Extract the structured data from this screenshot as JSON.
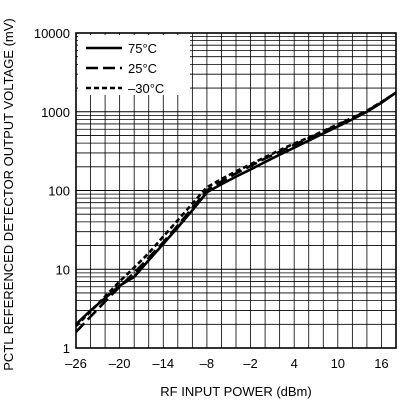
{
  "chart_data": {
    "type": "line",
    "xlabel": "RF INPUT POWER (dBm)",
    "ylabel": "PCTL REFERENCED DETECTOR OUTPUT VOLTAGE (mV)",
    "xlim": [
      -26,
      18
    ],
    "ylim": [
      1,
      10000
    ],
    "yscale": "log",
    "grid": true,
    "legend_position": "top-left",
    "x_ticks": [
      -26,
      -20,
      -14,
      -8,
      -2,
      4,
      10,
      16
    ],
    "x_tick_labels": [
      "–26",
      "–20",
      "–14",
      "–8",
      "–2",
      "4",
      "10",
      "16"
    ],
    "y_ticks": [
      1,
      10,
      100,
      1000,
      10000
    ],
    "y_tick_labels": [
      "1",
      "10",
      "100",
      "1000",
      "10000"
    ],
    "series": [
      {
        "name": "75°C",
        "dash": "solid",
        "x": [
          -26,
          -24,
          -22,
          -20,
          -18,
          -16,
          -14,
          -12,
          -10,
          -8,
          -6,
          -4,
          -2,
          0,
          2,
          4,
          6,
          8,
          10,
          12,
          14,
          16,
          18
        ],
        "y": [
          2.0,
          3.0,
          4.3,
          6.2,
          8.0,
          13.0,
          21.0,
          34.0,
          56.0,
          95.0,
          120.0,
          150.0,
          185.0,
          230.0,
          285.0,
          350.0,
          430.0,
          530.0,
          650.0,
          800.0,
          1000.0,
          1300.0,
          1750.0
        ]
      },
      {
        "name": "25°C",
        "dash": "long-dash",
        "x": [
          -26,
          -24,
          -22,
          -20,
          -18,
          -16,
          -14,
          -12,
          -10,
          -8,
          -6,
          -4,
          -2,
          0,
          2,
          4,
          6,
          8,
          10,
          12,
          14,
          16,
          18
        ],
        "y": [
          1.6,
          2.5,
          3.9,
          6.0,
          9.0,
          14.0,
          22.0,
          36.0,
          60.0,
          100.0,
          130.0,
          165.0,
          205.0,
          255.0,
          310.0,
          380.0,
          460.0,
          560.0,
          680.0,
          830.0,
          1020.0,
          1320.0,
          1750.0
        ]
      },
      {
        "name": "–30°C",
        "dash": "short-dash",
        "x": [
          -26,
          -24,
          -22,
          -20,
          -18,
          -16,
          -14,
          -12,
          -10,
          -8,
          -6,
          -4,
          -2,
          0,
          2,
          4,
          6,
          8,
          10,
          12,
          14,
          16,
          18
        ],
        "y": [
          1.9,
          2.9,
          4.5,
          7.0,
          10.5,
          16.0,
          26.0,
          42.0,
          68.0,
          110.0,
          140.0,
          175.0,
          215.0,
          265.0,
          325.0,
          395.0,
          470.0,
          570.0,
          690.0,
          840.0,
          1030.0,
          1330.0,
          1750.0
        ]
      }
    ]
  }
}
